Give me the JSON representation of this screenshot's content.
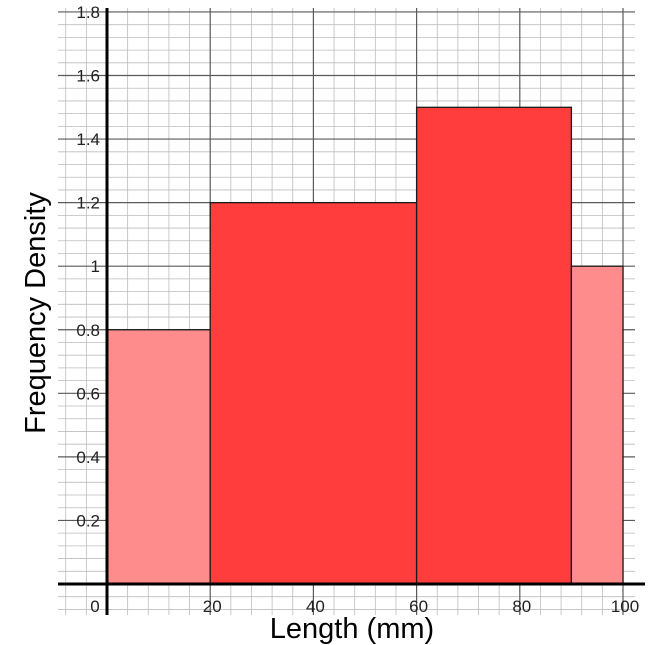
{
  "chart_data": {
    "type": "bar",
    "bins": [
      {
        "start": 0,
        "end": 20,
        "value": 0.8,
        "color": "#ff8c8c"
      },
      {
        "start": 20,
        "end": 60,
        "value": 1.2,
        "color": "#ff3d3d"
      },
      {
        "start": 60,
        "end": 90,
        "value": 1.5,
        "color": "#ff3d3d"
      },
      {
        "start": 90,
        "end": 100,
        "value": 1.0,
        "color": "#ff8c8c"
      }
    ],
    "xlabel": "Length (mm)",
    "ylabel": "Frequency Density",
    "xlim": [
      0,
      100
    ],
    "ylim": [
      0,
      1.8
    ],
    "x_ticks": [
      {
        "value": 0,
        "label": "0"
      },
      {
        "value": 20,
        "label": "20"
      },
      {
        "value": 40,
        "label": "40"
      },
      {
        "value": 60,
        "label": "60"
      },
      {
        "value": 80,
        "label": "80"
      },
      {
        "value": 100,
        "label": "100"
      }
    ],
    "y_ticks": [
      {
        "value": 0.2,
        "label": "0.2"
      },
      {
        "value": 0.4,
        "label": "0.4"
      },
      {
        "value": 0.6,
        "label": "0.6"
      },
      {
        "value": 0.8,
        "label": "0.8"
      },
      {
        "value": 1.0,
        "label": "1"
      },
      {
        "value": 1.2,
        "label": "1.2"
      },
      {
        "value": 1.4,
        "label": "1.4"
      },
      {
        "value": 1.6,
        "label": "1.6"
      },
      {
        "value": 1.8,
        "label": "1.8"
      }
    ],
    "grid": true,
    "colors": {
      "dark_bar": "#ff3d3d",
      "light_bar": "#ff8c8c",
      "grid": "#bdbdbd",
      "major_grid": "#5a5a5a"
    }
  }
}
